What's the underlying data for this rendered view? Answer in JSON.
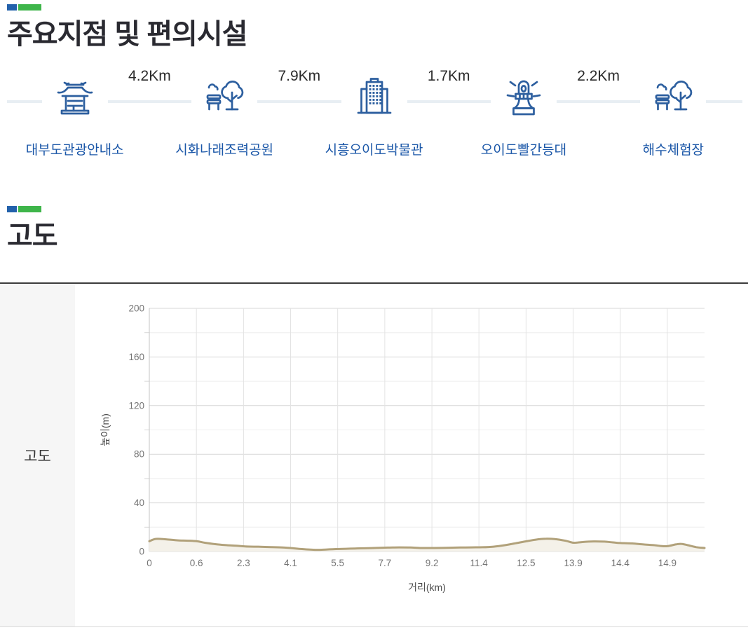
{
  "deco": {
    "blue": "#2361ab",
    "green": "#3eb54a"
  },
  "section1": {
    "title": "주요지점 및 편의시설"
  },
  "waypoints": {
    "icon_color": "#2d5f9f",
    "label_color": "#1b57a8",
    "line_color": "#e8eef3",
    "items": [
      {
        "name": "대부도관광안내소",
        "icon": "pavilion-icon"
      },
      {
        "name": "시화나래조력공원",
        "icon": "park-bench-tree-icon"
      },
      {
        "name": "시흥오이도박물관",
        "icon": "museum-building-icon"
      },
      {
        "name": "오이도빨간등대",
        "icon": "lighthouse-icon"
      },
      {
        "name": "해수체험장",
        "icon": "park-bench-tree-icon"
      }
    ],
    "distances": [
      "4.2Km",
      "7.9Km",
      "1.7Km",
      "2.2Km"
    ]
  },
  "section2": {
    "title": "고도",
    "row_header": "고도"
  },
  "chart_data": {
    "type": "area",
    "title": "",
    "xlabel": "거리(km)",
    "ylabel": "높이(m)",
    "ylim": [
      0,
      200
    ],
    "y_ticks": [
      0,
      40,
      80,
      120,
      160,
      200
    ],
    "y_minor_step": 20,
    "grid": "on",
    "legend": "none",
    "x_tick_labels": [
      "0",
      "0.6",
      "2.3",
      "4.1",
      "5.5",
      "7.7",
      "9.2",
      "11.4",
      "12.5",
      "13.9",
      "14.4",
      "14.9"
    ],
    "series": [
      {
        "name": "고도",
        "note": "points are [position fraction of plot width, elevation m]; tick labels mark uneven km distances",
        "points": [
          [
            0.0,
            8.5
          ],
          [
            0.012,
            10.4
          ],
          [
            0.03,
            10.0
          ],
          [
            0.05,
            9.2
          ],
          [
            0.07,
            8.9
          ],
          [
            0.086,
            8.4
          ],
          [
            0.1,
            7.2
          ],
          [
            0.12,
            6.0
          ],
          [
            0.14,
            5.2
          ],
          [
            0.157,
            4.8
          ],
          [
            0.173,
            4.2
          ],
          [
            0.2,
            3.9
          ],
          [
            0.22,
            3.6
          ],
          [
            0.24,
            3.3
          ],
          [
            0.258,
            2.7
          ],
          [
            0.275,
            2.0
          ],
          [
            0.3,
            1.4
          ],
          [
            0.32,
            1.7
          ],
          [
            0.343,
            2.1
          ],
          [
            0.37,
            2.5
          ],
          [
            0.4,
            2.8
          ],
          [
            0.429,
            3.2
          ],
          [
            0.45,
            3.4
          ],
          [
            0.47,
            3.3
          ],
          [
            0.49,
            2.9
          ],
          [
            0.514,
            2.9
          ],
          [
            0.54,
            3.1
          ],
          [
            0.56,
            3.3
          ],
          [
            0.58,
            3.4
          ],
          [
            0.6,
            3.5
          ],
          [
            0.62,
            4.0
          ],
          [
            0.64,
            5.2
          ],
          [
            0.66,
            6.8
          ],
          [
            0.681,
            8.6
          ],
          [
            0.7,
            10.0
          ],
          [
            0.715,
            10.5
          ],
          [
            0.73,
            10.2
          ],
          [
            0.75,
            8.8
          ],
          [
            0.764,
            7.2
          ],
          [
            0.78,
            7.8
          ],
          [
            0.8,
            8.3
          ],
          [
            0.82,
            8.1
          ],
          [
            0.835,
            7.5
          ],
          [
            0.848,
            7.0
          ],
          [
            0.87,
            6.6
          ],
          [
            0.89,
            5.8
          ],
          [
            0.91,
            5.2
          ],
          [
            0.92,
            4.6
          ],
          [
            0.933,
            4.4
          ],
          [
            0.948,
            5.8
          ],
          [
            0.958,
            6.3
          ],
          [
            0.97,
            5.2
          ],
          [
            0.985,
            3.6
          ],
          [
            1.0,
            2.9
          ]
        ]
      }
    ],
    "colors": {
      "line": "#b1a17a",
      "fill": "#f4f1e9",
      "grid_major": "#d7d7d7",
      "grid_minor": "#eeeeee",
      "grid_vertical": "#e3e3e3",
      "axis": "#c4c4c4",
      "tick_label": "#757575",
      "axis_title": "#4c4c4c"
    }
  }
}
